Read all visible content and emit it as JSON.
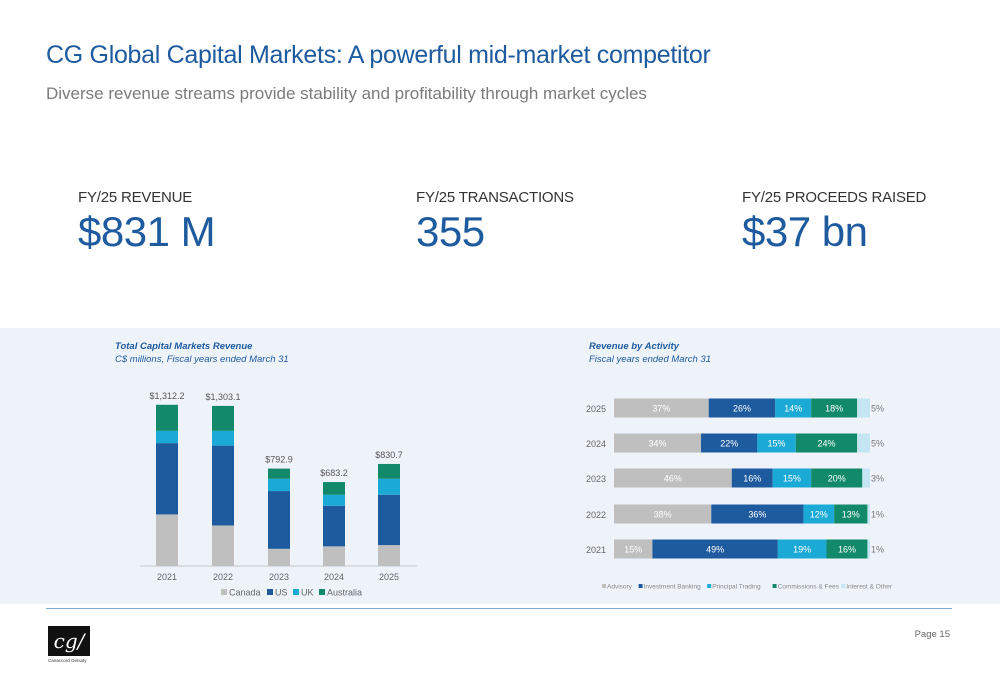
{
  "header": {
    "title": "CG Global Capital Markets: A powerful mid-market competitor",
    "subtitle": "Diverse revenue streams provide stability and profitability through market cycles"
  },
  "kpis": [
    {
      "label": "FY/25 REVENUE",
      "value": "$831 M"
    },
    {
      "label": "FY/25 TRANSACTIONS",
      "value": "355"
    },
    {
      "label": "FY/25 PROCEEDS RAISED",
      "value": "$37 bn"
    }
  ],
  "colors": {
    "canada": "#bfbfbf",
    "us": "#1d5a9e",
    "uk": "#1ba9d6",
    "australia": "#128a6a",
    "advisory": "#bfbfbf",
    "investment_banking": "#1d5a9e",
    "principal_trading": "#1ba9d6",
    "commissions_fees": "#128a6a",
    "interest_other": "#c3e6f2",
    "band": "#eef3fa"
  },
  "chart_data": [
    {
      "type": "bar",
      "stacked": true,
      "title": "Total Capital Markets Revenue",
      "subtitle": "C$ millions, Fiscal years ended March 31",
      "categories": [
        "2021",
        "2022",
        "2023",
        "2024",
        "2025"
      ],
      "totals": [
        1312.2,
        1303.1,
        792.9,
        683.2,
        830.7
      ],
      "total_labels": [
        "$1,312.2",
        "$1,303.1",
        "$792.9",
        "$683.2",
        "$830.7"
      ],
      "series": [
        {
          "name": "Canada",
          "values": [
            420,
            330,
            140,
            160,
            170
          ]
        },
        {
          "name": "US",
          "values": [
            580,
            650,
            470,
            330,
            410
          ]
        },
        {
          "name": "UK",
          "values": [
            100,
            120,
            100,
            90,
            130
          ]
        },
        {
          "name": "Australia",
          "values": [
            212.2,
            203.1,
            82.9,
            103.2,
            120.7
          ]
        }
      ],
      "ylim": [
        0,
        1400
      ],
      "grid": false,
      "legend": "bottom"
    },
    {
      "type": "bar",
      "orientation": "horizontal",
      "stacked_percent": true,
      "title": "Revenue by Activity",
      "subtitle": "Fiscal years ended March 31",
      "categories": [
        "2025",
        "2024",
        "2023",
        "2022",
        "2021"
      ],
      "series": [
        {
          "name": "Advisory",
          "values": [
            37,
            34,
            46,
            38,
            15
          ]
        },
        {
          "name": "Investment Banking",
          "values": [
            26,
            22,
            16,
            36,
            49
          ]
        },
        {
          "name": "Principal Trading",
          "values": [
            14,
            15,
            15,
            12,
            19
          ]
        },
        {
          "name": "Commissions & Fees",
          "values": [
            18,
            24,
            20,
            13,
            16
          ]
        },
        {
          "name": "Interest & Other",
          "values": [
            5,
            5,
            3,
            1,
            1
          ]
        }
      ],
      "xlim": [
        0,
        100
      ],
      "grid": false,
      "legend": "bottom"
    }
  ],
  "footer": {
    "logo_mark": "cg/",
    "logo_text": "Canaccord Genuity",
    "page": "Page 15"
  }
}
